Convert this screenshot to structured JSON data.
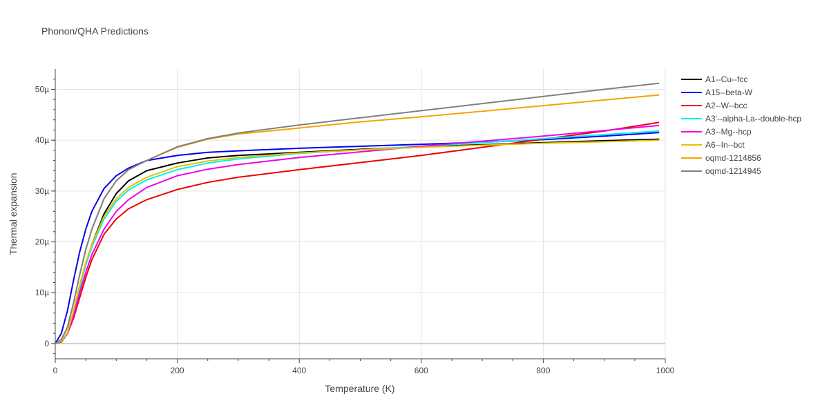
{
  "chart_data": {
    "type": "line",
    "title": "Phonon/QHA Predictions",
    "xlabel": "Temperature (K)",
    "ylabel": "Thermal expansion",
    "xlim": [
      0,
      1000
    ],
    "ylim": [
      -3e-06,
      5.4e-05
    ],
    "xticks": [
      0,
      200,
      400,
      600,
      800,
      1000
    ],
    "xtick_labels": [
      "0",
      "200",
      "400",
      "600",
      "800",
      "1000"
    ],
    "yticks": [
      0,
      1e-05,
      2e-05,
      3e-05,
      4e-05,
      5e-05
    ],
    "ytick_labels": [
      "0",
      "10µ",
      "20µ",
      "30µ",
      "40µ",
      "50µ"
    ],
    "grid": true,
    "legend_position": "top-right",
    "series": [
      {
        "name": "A1--Cu--fcc",
        "color": "#000000",
        "x": [
          0,
          10,
          20,
          30,
          40,
          50,
          60,
          80,
          100,
          120,
          150,
          200,
          250,
          300,
          400,
          500,
          600,
          700,
          800,
          900,
          990
        ],
        "y": [
          0,
          3e-07,
          2e-06,
          6e-06,
          1.1e-05,
          1.55e-05,
          1.95e-05,
          2.55e-05,
          2.95e-05,
          3.2e-05,
          3.4e-05,
          3.55e-05,
          3.65e-05,
          3.7e-05,
          3.76e-05,
          3.82e-05,
          3.87e-05,
          3.91e-05,
          3.95e-05,
          3.99e-05,
          4.02e-05
        ]
      },
      {
        "name": "A15--beta-W",
        "color": "#0000ee",
        "x": [
          0,
          10,
          20,
          30,
          40,
          50,
          60,
          80,
          100,
          120,
          150,
          200,
          250,
          300,
          400,
          500,
          600,
          700,
          800,
          900,
          990
        ],
        "y": [
          0,
          2e-06,
          6.5e-06,
          1.25e-05,
          1.8e-05,
          2.25e-05,
          2.6e-05,
          3.05e-05,
          3.3e-05,
          3.45e-05,
          3.6e-05,
          3.7e-05,
          3.76e-05,
          3.79e-05,
          3.84e-05,
          3.88e-05,
          3.92e-05,
          3.96e-05,
          4.01e-05,
          4.08e-05,
          4.15e-05
        ]
      },
      {
        "name": "A2--W--bcc",
        "color": "#ee0000",
        "x": [
          0,
          10,
          20,
          30,
          40,
          50,
          60,
          80,
          100,
          120,
          150,
          200,
          250,
          300,
          400,
          500,
          600,
          700,
          800,
          900,
          990
        ],
        "y": [
          0,
          5e-07,
          2e-06,
          5e-06,
          9e-06,
          1.3e-05,
          1.65e-05,
          2.15e-05,
          2.45e-05,
          2.65e-05,
          2.83e-05,
          3.03e-05,
          3.17e-05,
          3.27e-05,
          3.42e-05,
          3.56e-05,
          3.7e-05,
          3.86e-05,
          4.02e-05,
          4.18e-05,
          4.35e-05
        ]
      },
      {
        "name": "A3'--alpha-La--double-hcp",
        "color": "#00f0f0",
        "x": [
          0,
          10,
          20,
          30,
          40,
          50,
          60,
          80,
          100,
          120,
          150,
          200,
          250,
          300,
          400,
          500,
          600,
          700,
          800,
          900,
          990
        ],
        "y": [
          0,
          4e-07,
          2e-06,
          6e-06,
          1.1e-05,
          1.55e-05,
          1.9e-05,
          2.45e-05,
          2.8e-05,
          3.02e-05,
          3.22e-05,
          3.42e-05,
          3.55e-05,
          3.63e-05,
          3.74e-05,
          3.81e-05,
          3.88e-05,
          3.95e-05,
          4.03e-05,
          4.11e-05,
          4.18e-05
        ]
      },
      {
        "name": "A3--Mg--hcp",
        "color": "#ee00ee",
        "x": [
          0,
          10,
          20,
          30,
          40,
          50,
          60,
          80,
          100,
          120,
          150,
          200,
          250,
          300,
          400,
          500,
          600,
          700,
          800,
          900,
          990
        ],
        "y": [
          0,
          4e-07,
          2e-06,
          5.5e-06,
          1e-05,
          1.4e-05,
          1.75e-05,
          2.25e-05,
          2.6e-05,
          2.83e-05,
          3.07e-05,
          3.3e-05,
          3.43e-05,
          3.52e-05,
          3.66e-05,
          3.77e-05,
          3.88e-05,
          3.98e-05,
          4.08e-05,
          4.19e-05,
          4.29e-05
        ]
      },
      {
        "name": "A6--In--bct",
        "color": "#e8c000",
        "x": [
          0,
          10,
          20,
          30,
          40,
          50,
          60,
          80,
          100,
          120,
          150,
          200,
          250,
          300,
          400,
          500,
          600,
          700,
          800,
          900,
          990
        ],
        "y": [
          0,
          4e-07,
          2.2e-06,
          6.5e-06,
          1.15e-05,
          1.6e-05,
          1.95e-05,
          2.5e-05,
          2.85e-05,
          3.07e-05,
          3.27e-05,
          3.48e-05,
          3.59e-05,
          3.66e-05,
          3.75e-05,
          3.81e-05,
          3.86e-05,
          3.9e-05,
          3.94e-05,
          3.97e-05,
          4e-05
        ]
      },
      {
        "name": "oqmd-1214856",
        "color": "#f5a300",
        "x": [
          0,
          10,
          20,
          30,
          40,
          50,
          60,
          80,
          100,
          120,
          150,
          200,
          250,
          300,
          400,
          500,
          600,
          700,
          800,
          900,
          990
        ],
        "y": [
          0,
          8e-07,
          3.2e-06,
          8e-06,
          1.35e-05,
          1.85e-05,
          2.25e-05,
          2.85e-05,
          3.2e-05,
          3.42e-05,
          3.6e-05,
          3.86e-05,
          4.02e-05,
          4.12e-05,
          4.24e-05,
          4.36e-05,
          4.46e-05,
          4.57e-05,
          4.68e-05,
          4.79e-05,
          4.89e-05
        ]
      },
      {
        "name": "oqmd-1214945",
        "color": "#808080",
        "x": [
          0,
          10,
          20,
          30,
          40,
          50,
          60,
          80,
          100,
          120,
          150,
          200,
          250,
          300,
          400,
          500,
          600,
          700,
          800,
          900,
          990
        ],
        "y": [
          0,
          8e-07,
          3.2e-06,
          8e-06,
          1.35e-05,
          1.85e-05,
          2.25e-05,
          2.85e-05,
          3.2e-05,
          3.42e-05,
          3.6e-05,
          3.87e-05,
          4.03e-05,
          4.14e-05,
          4.3e-05,
          4.44e-05,
          4.58e-05,
          4.72e-05,
          4.86e-05,
          5e-05,
          5.12e-05
        ]
      }
    ]
  }
}
